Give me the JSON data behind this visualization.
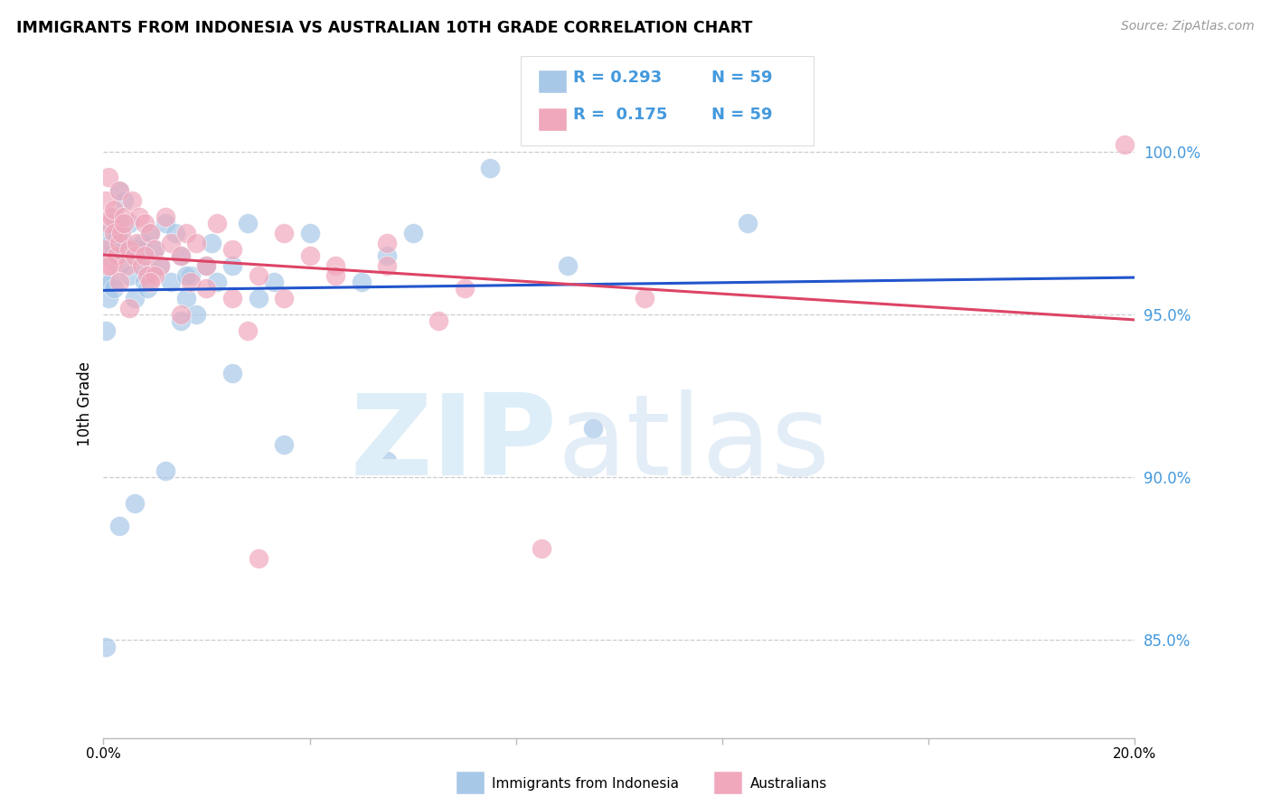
{
  "title": "IMMIGRANTS FROM INDONESIA VS AUSTRALIAN 10TH GRADE CORRELATION CHART",
  "source": "Source: ZipAtlas.com",
  "ylabel": "10th Grade",
  "ytick_labels": [
    "100.0%",
    "95.0%",
    "90.0%",
    "85.0%"
  ],
  "ytick_values": [
    100.0,
    95.0,
    90.0,
    85.0
  ],
  "xmin": 0.0,
  "xmax": 20.0,
  "ymin": 82.0,
  "ymax": 102.5,
  "blue_color": "#a8c8e8",
  "pink_color": "#f0a8bc",
  "blue_line_color": "#2255cc",
  "pink_line_color": "#dd4466",
  "blue_x": [
    0.05,
    0.05,
    0.1,
    0.1,
    0.1,
    0.15,
    0.15,
    0.2,
    0.2,
    0.25,
    0.3,
    0.3,
    0.35,
    0.4,
    0.4,
    0.5,
    0.5,
    0.55,
    0.6,
    0.65,
    0.7,
    0.75,
    0.8,
    0.85,
    0.9,
    0.95,
    1.0,
    1.1,
    1.2,
    1.3,
    1.4,
    1.5,
    1.6,
    1.7,
    1.8,
    2.0,
    2.1,
    2.2,
    2.5,
    2.8,
    3.0,
    3.3,
    1.5,
    1.6,
    2.5,
    4.0,
    5.0,
    5.5,
    6.0,
    7.5,
    9.0,
    0.3,
    0.6,
    1.2,
    3.5,
    5.5,
    9.5,
    12.5,
    0.05
  ],
  "blue_y": [
    94.5,
    96.0,
    97.5,
    96.8,
    95.5,
    97.2,
    96.0,
    98.0,
    95.8,
    97.5,
    98.8,
    96.5,
    97.0,
    98.5,
    97.2,
    97.8,
    96.2,
    96.8,
    95.5,
    97.0,
    96.5,
    97.2,
    96.0,
    95.8,
    97.5,
    96.3,
    97.0,
    96.5,
    97.8,
    96.0,
    97.5,
    96.8,
    95.5,
    96.2,
    95.0,
    96.5,
    97.2,
    96.0,
    96.5,
    97.8,
    95.5,
    96.0,
    94.8,
    96.2,
    93.2,
    97.5,
    96.0,
    96.8,
    97.5,
    99.5,
    96.5,
    88.5,
    89.2,
    90.2,
    91.0,
    90.5,
    91.5,
    97.8,
    84.8
  ],
  "pink_x": [
    0.05,
    0.05,
    0.1,
    0.1,
    0.15,
    0.15,
    0.2,
    0.2,
    0.25,
    0.3,
    0.3,
    0.35,
    0.4,
    0.45,
    0.5,
    0.55,
    0.6,
    0.65,
    0.7,
    0.75,
    0.8,
    0.85,
    0.9,
    1.0,
    1.1,
    1.2,
    1.3,
    1.5,
    1.6,
    1.7,
    2.0,
    2.2,
    2.5,
    2.5,
    3.0,
    3.5,
    4.0,
    4.5,
    5.5,
    0.3,
    0.5,
    0.8,
    1.0,
    1.5,
    2.0,
    2.8,
    3.5,
    4.5,
    5.5,
    7.0,
    8.5,
    10.5,
    19.8,
    0.1,
    0.4,
    0.9,
    1.8,
    3.0,
    6.5
  ],
  "pink_y": [
    98.5,
    97.0,
    97.8,
    99.2,
    98.0,
    96.5,
    97.5,
    98.2,
    96.8,
    97.2,
    98.8,
    97.5,
    98.0,
    96.5,
    97.0,
    98.5,
    96.8,
    97.2,
    98.0,
    96.5,
    97.8,
    96.2,
    97.5,
    97.0,
    96.5,
    98.0,
    97.2,
    96.8,
    97.5,
    96.0,
    96.5,
    97.8,
    97.0,
    95.5,
    96.2,
    97.5,
    96.8,
    96.5,
    97.2,
    96.0,
    95.2,
    96.8,
    96.2,
    95.0,
    95.8,
    94.5,
    95.5,
    96.2,
    96.5,
    95.8,
    87.8,
    95.5,
    100.2,
    96.5,
    97.8,
    96.0,
    97.2,
    87.5,
    94.8
  ]
}
